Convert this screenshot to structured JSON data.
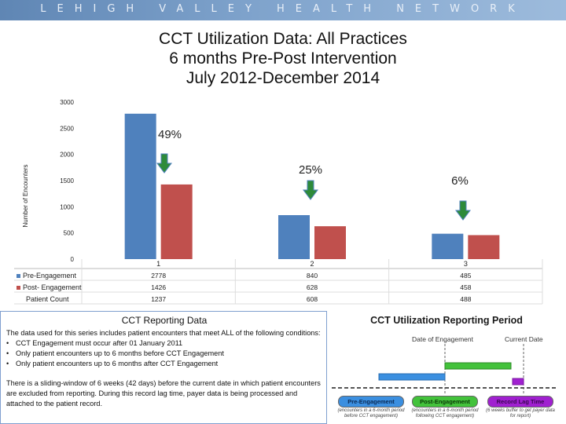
{
  "banner": {
    "text": "LEHIGH VALLEY HEALTH NETWORK"
  },
  "title_lines": [
    "CCT Utilization Data:  All Practices",
    "6 months Pre-Post Intervention",
    "July 2012-December 2014"
  ],
  "chart_data": {
    "type": "bar",
    "ylabel": "Number of Encounters",
    "ylim": [
      0,
      3000
    ],
    "yticks": [
      0,
      500,
      1000,
      1500,
      2000,
      2500,
      3000
    ],
    "categories": [
      "1",
      "2",
      "3"
    ],
    "series": [
      {
        "name": "Pre-Engagement",
        "values": [
          2778,
          840,
          485
        ],
        "color": "#4f81bd"
      },
      {
        "name": "Post-Engagement",
        "values": [
          1426,
          628,
          458
        ],
        "color": "#c0504d"
      }
    ],
    "table_rows": [
      {
        "label": "Patient Count",
        "values": [
          "1237",
          "608",
          "488"
        ]
      }
    ],
    "annotations": [
      {
        "text": "49%",
        "category": "1"
      },
      {
        "text": "25%",
        "category": "2"
      },
      {
        "text": "6%",
        "category": "3"
      }
    ],
    "grid": false,
    "legend": "in data table"
  },
  "table": {
    "pre_label": "Pre-Engagement",
    "post_label": "Post- Engagement",
    "patient_label": "Patient Count",
    "pre_values": [
      "2778",
      "840",
      "485"
    ],
    "post_values": [
      "1426",
      "628",
      "458"
    ],
    "patient_values": [
      "1237",
      "608",
      "488"
    ]
  },
  "report": {
    "title": "CCT Reporting Data",
    "intro": "The data used for this series includes patient encounters that meet ALL of the following conditions:",
    "bullets": [
      "CCT Engagement must occur after 01 January 2011",
      "Only patient encounters up to 6 months before CCT Engagement",
      "Only patient encounters up to 6 months after CCT Engagement"
    ],
    "note": "There is a sliding-window of 6 weeks (42 days) before the current date in which patient encounters are excluded from reporting. During this record lag time, payer data is being processed and attached to the patient record."
  },
  "period": {
    "title": "CCT Utilization Reporting Period",
    "date_engagement": "Date of Engagement",
    "current_date": "Current Date",
    "pills": [
      {
        "label": "Pre-Engagement",
        "desc": "(encounters in a 6-month period before CCT engagement)",
        "color": "#3b8fe0"
      },
      {
        "label": "Post-Engagement",
        "desc": "(encounters in a 6-month period following CCT engagement)",
        "color": "#43c23b"
      },
      {
        "label": "Record Lag Time",
        "desc": "(6 weeks buffer to get payer data for report)",
        "color": "#a020d0"
      }
    ]
  },
  "colors": {
    "arrow": "#2e8b3a",
    "arrow_edge": "#4f81bd"
  }
}
